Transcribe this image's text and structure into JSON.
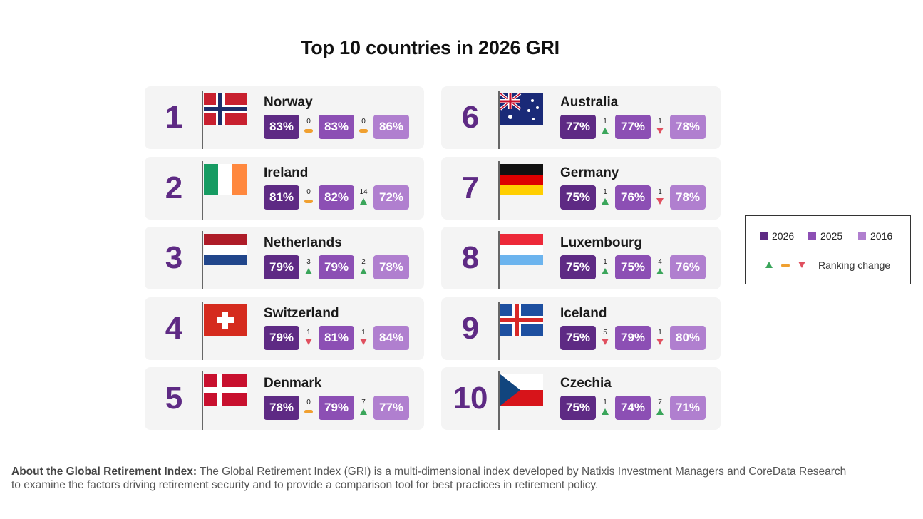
{
  "title": "Top 10 countries in 2026 GRI",
  "legend": {
    "y2026": "2026",
    "y2025": "2025",
    "y2016": "2016",
    "ranking_change": "Ranking change"
  },
  "colors": {
    "y2026": "#5e2a84",
    "y2025": "#8c4fb4",
    "y2016": "#b07fcf",
    "up": "#3aa55a",
    "same": "#f0a030",
    "down": "#e0505f"
  },
  "chart_data": {
    "type": "table",
    "title": "Top 10 countries in 2026 GRI",
    "columns": [
      "rank",
      "country",
      "2026",
      "change_2026_vs_2025",
      "2025",
      "change_2025_vs_2016",
      "2016"
    ],
    "rows": [
      {
        "rank": "1",
        "country": "Norway",
        "flag": "norway-flag",
        "v2026": "83%",
        "c1": {
          "n": "0",
          "dir": "same"
        },
        "v2025": "83%",
        "c2": {
          "n": "0",
          "dir": "same"
        },
        "v2016": "86%"
      },
      {
        "rank": "2",
        "country": "Ireland",
        "flag": "ireland-flag",
        "v2026": "81%",
        "c1": {
          "n": "0",
          "dir": "same"
        },
        "v2025": "82%",
        "c2": {
          "n": "14",
          "dir": "up"
        },
        "v2016": "72%"
      },
      {
        "rank": "3",
        "country": "Netherlands",
        "flag": "netherlands-flag",
        "v2026": "79%",
        "c1": {
          "n": "3",
          "dir": "up"
        },
        "v2025": "79%",
        "c2": {
          "n": "2",
          "dir": "up"
        },
        "v2016": "78%"
      },
      {
        "rank": "4",
        "country": "Switzerland",
        "flag": "switzerland-flag",
        "v2026": "79%",
        "c1": {
          "n": "1",
          "dir": "down"
        },
        "v2025": "81%",
        "c2": {
          "n": "1",
          "dir": "down"
        },
        "v2016": "84%"
      },
      {
        "rank": "5",
        "country": "Denmark",
        "flag": "denmark-flag",
        "v2026": "78%",
        "c1": {
          "n": "0",
          "dir": "same"
        },
        "v2025": "79%",
        "c2": {
          "n": "7",
          "dir": "up"
        },
        "v2016": "77%"
      },
      {
        "rank": "6",
        "country": "Australia",
        "flag": "australia-flag",
        "v2026": "77%",
        "c1": {
          "n": "1",
          "dir": "up"
        },
        "v2025": "77%",
        "c2": {
          "n": "1",
          "dir": "down"
        },
        "v2016": "78%"
      },
      {
        "rank": "7",
        "country": "Germany",
        "flag": "germany-flag",
        "v2026": "75%",
        "c1": {
          "n": "1",
          "dir": "up"
        },
        "v2025": "76%",
        "c2": {
          "n": "1",
          "dir": "down"
        },
        "v2016": "78%"
      },
      {
        "rank": "8",
        "country": "Luxembourg",
        "flag": "luxembourg-flag",
        "v2026": "75%",
        "c1": {
          "n": "1",
          "dir": "up"
        },
        "v2025": "75%",
        "c2": {
          "n": "4",
          "dir": "up"
        },
        "v2016": "76%"
      },
      {
        "rank": "9",
        "country": "Iceland",
        "flag": "iceland-flag",
        "v2026": "75%",
        "c1": {
          "n": "5",
          "dir": "down"
        },
        "v2025": "79%",
        "c2": {
          "n": "1",
          "dir": "down"
        },
        "v2016": "80%"
      },
      {
        "rank": "10",
        "country": "Czechia",
        "flag": "czechia-flag",
        "v2026": "75%",
        "c1": {
          "n": "1",
          "dir": "up"
        },
        "v2025": "74%",
        "c2": {
          "n": "7",
          "dir": "up"
        },
        "v2016": "71%"
      }
    ]
  },
  "footnote": {
    "label": "About the Global Retirement Index:",
    "text": " The Global Retirement Index (GRI) is a multi-dimensional index developed by Natixis Investment Managers and CoreData Research to examine the factors driving retirement security and to provide a comparison tool for best practices in retirement policy."
  }
}
